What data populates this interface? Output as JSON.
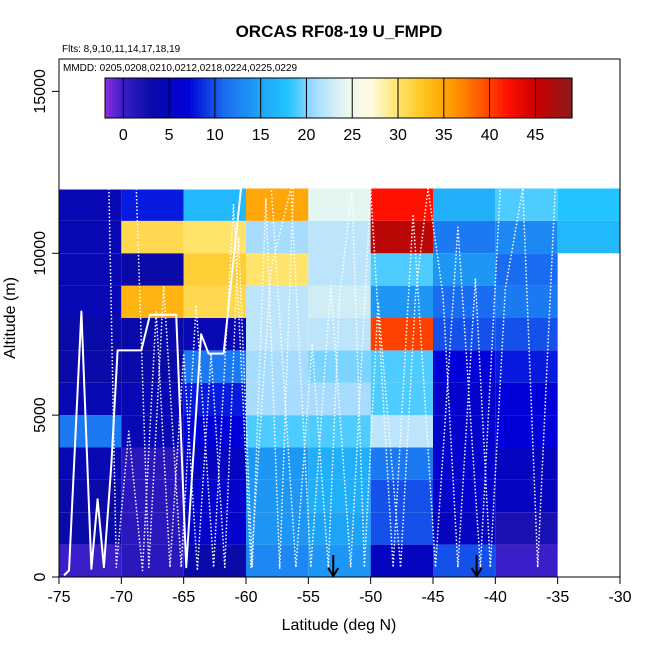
{
  "chart_data": {
    "type": "heatmap",
    "title": "ORCAS RF08-19 U_FMPD",
    "flights_note": "Flts: 8,9,10,11,14,17,18,19",
    "dates_note": "MMDD: 0205,0208,0210,0212,0218,0224,0225,0229",
    "xlabel": "Latitude (deg N)",
    "ylabel": "Altitude (m)",
    "xlim": [
      -75,
      -30
    ],
    "ylim": [
      0,
      16000
    ],
    "x_ticks": [
      -75,
      -70,
      -65,
      -60,
      -55,
      -50,
      -45,
      -40,
      -35,
      -30
    ],
    "x_tick_labels": [
      "-75",
      "-70",
      "-65",
      "-60",
      "-55",
      "-50",
      "-45",
      "-40",
      "-35",
      "-30"
    ],
    "y_ticks": [
      0,
      5000,
      10000,
      15000
    ],
    "y_tick_labels": [
      "0",
      "5000",
      "10000",
      "15000"
    ],
    "colorbar": {
      "min": -2,
      "max": 49,
      "ticks": [
        0,
        5,
        10,
        15,
        20,
        25,
        30,
        35,
        40,
        45
      ],
      "tick_labels": [
        "0",
        "5",
        "10",
        "15",
        "20",
        "25",
        "30",
        "35",
        "40",
        "45"
      ]
    },
    "grid": {
      "lat_edges": [
        -75,
        -70,
        -65,
        -60,
        -55,
        -50,
        -45,
        -40,
        -35,
        -30
      ],
      "alt_edges": [
        0,
        1000,
        2000,
        3000,
        4000,
        5000,
        6000,
        7000,
        8000,
        9000,
        10000,
        11000,
        12000
      ],
      "values": [
        [
          0,
          1,
          3,
          13,
          14,
          5,
          10,
          0,
          null
        ],
        [
          3,
          1,
          6,
          14,
          15,
          10,
          5,
          2,
          null
        ],
        [
          3,
          1,
          6,
          14,
          16,
          10,
          6,
          5,
          null
        ],
        [
          4,
          1,
          5,
          14,
          16,
          12,
          6,
          5,
          null
        ],
        [
          12,
          4,
          7,
          19,
          19,
          22,
          6,
          7,
          null
        ],
        [
          4,
          4,
          8,
          21,
          21,
          19,
          6,
          7,
          null
        ],
        [
          3,
          3,
          12,
          21,
          20,
          19,
          7,
          8,
          null
        ],
        [
          3,
          3,
          4,
          22,
          22,
          40,
          10,
          10,
          null
        ],
        [
          4,
          34,
          31,
          22,
          23,
          14,
          11,
          12,
          null
        ],
        [
          4,
          3,
          32,
          30,
          22,
          19,
          14,
          11,
          null
        ],
        [
          4,
          31,
          30,
          21,
          22,
          46,
          12,
          13,
          17
        ],
        [
          4,
          8,
          17,
          35,
          24,
          42,
          16,
          19,
          18
        ]
      ]
    },
    "annotations": [
      {
        "type": "arrow",
        "lat": -53,
        "label": ""
      },
      {
        "type": "arrow",
        "lat": -41.5,
        "label": ""
      }
    ]
  }
}
